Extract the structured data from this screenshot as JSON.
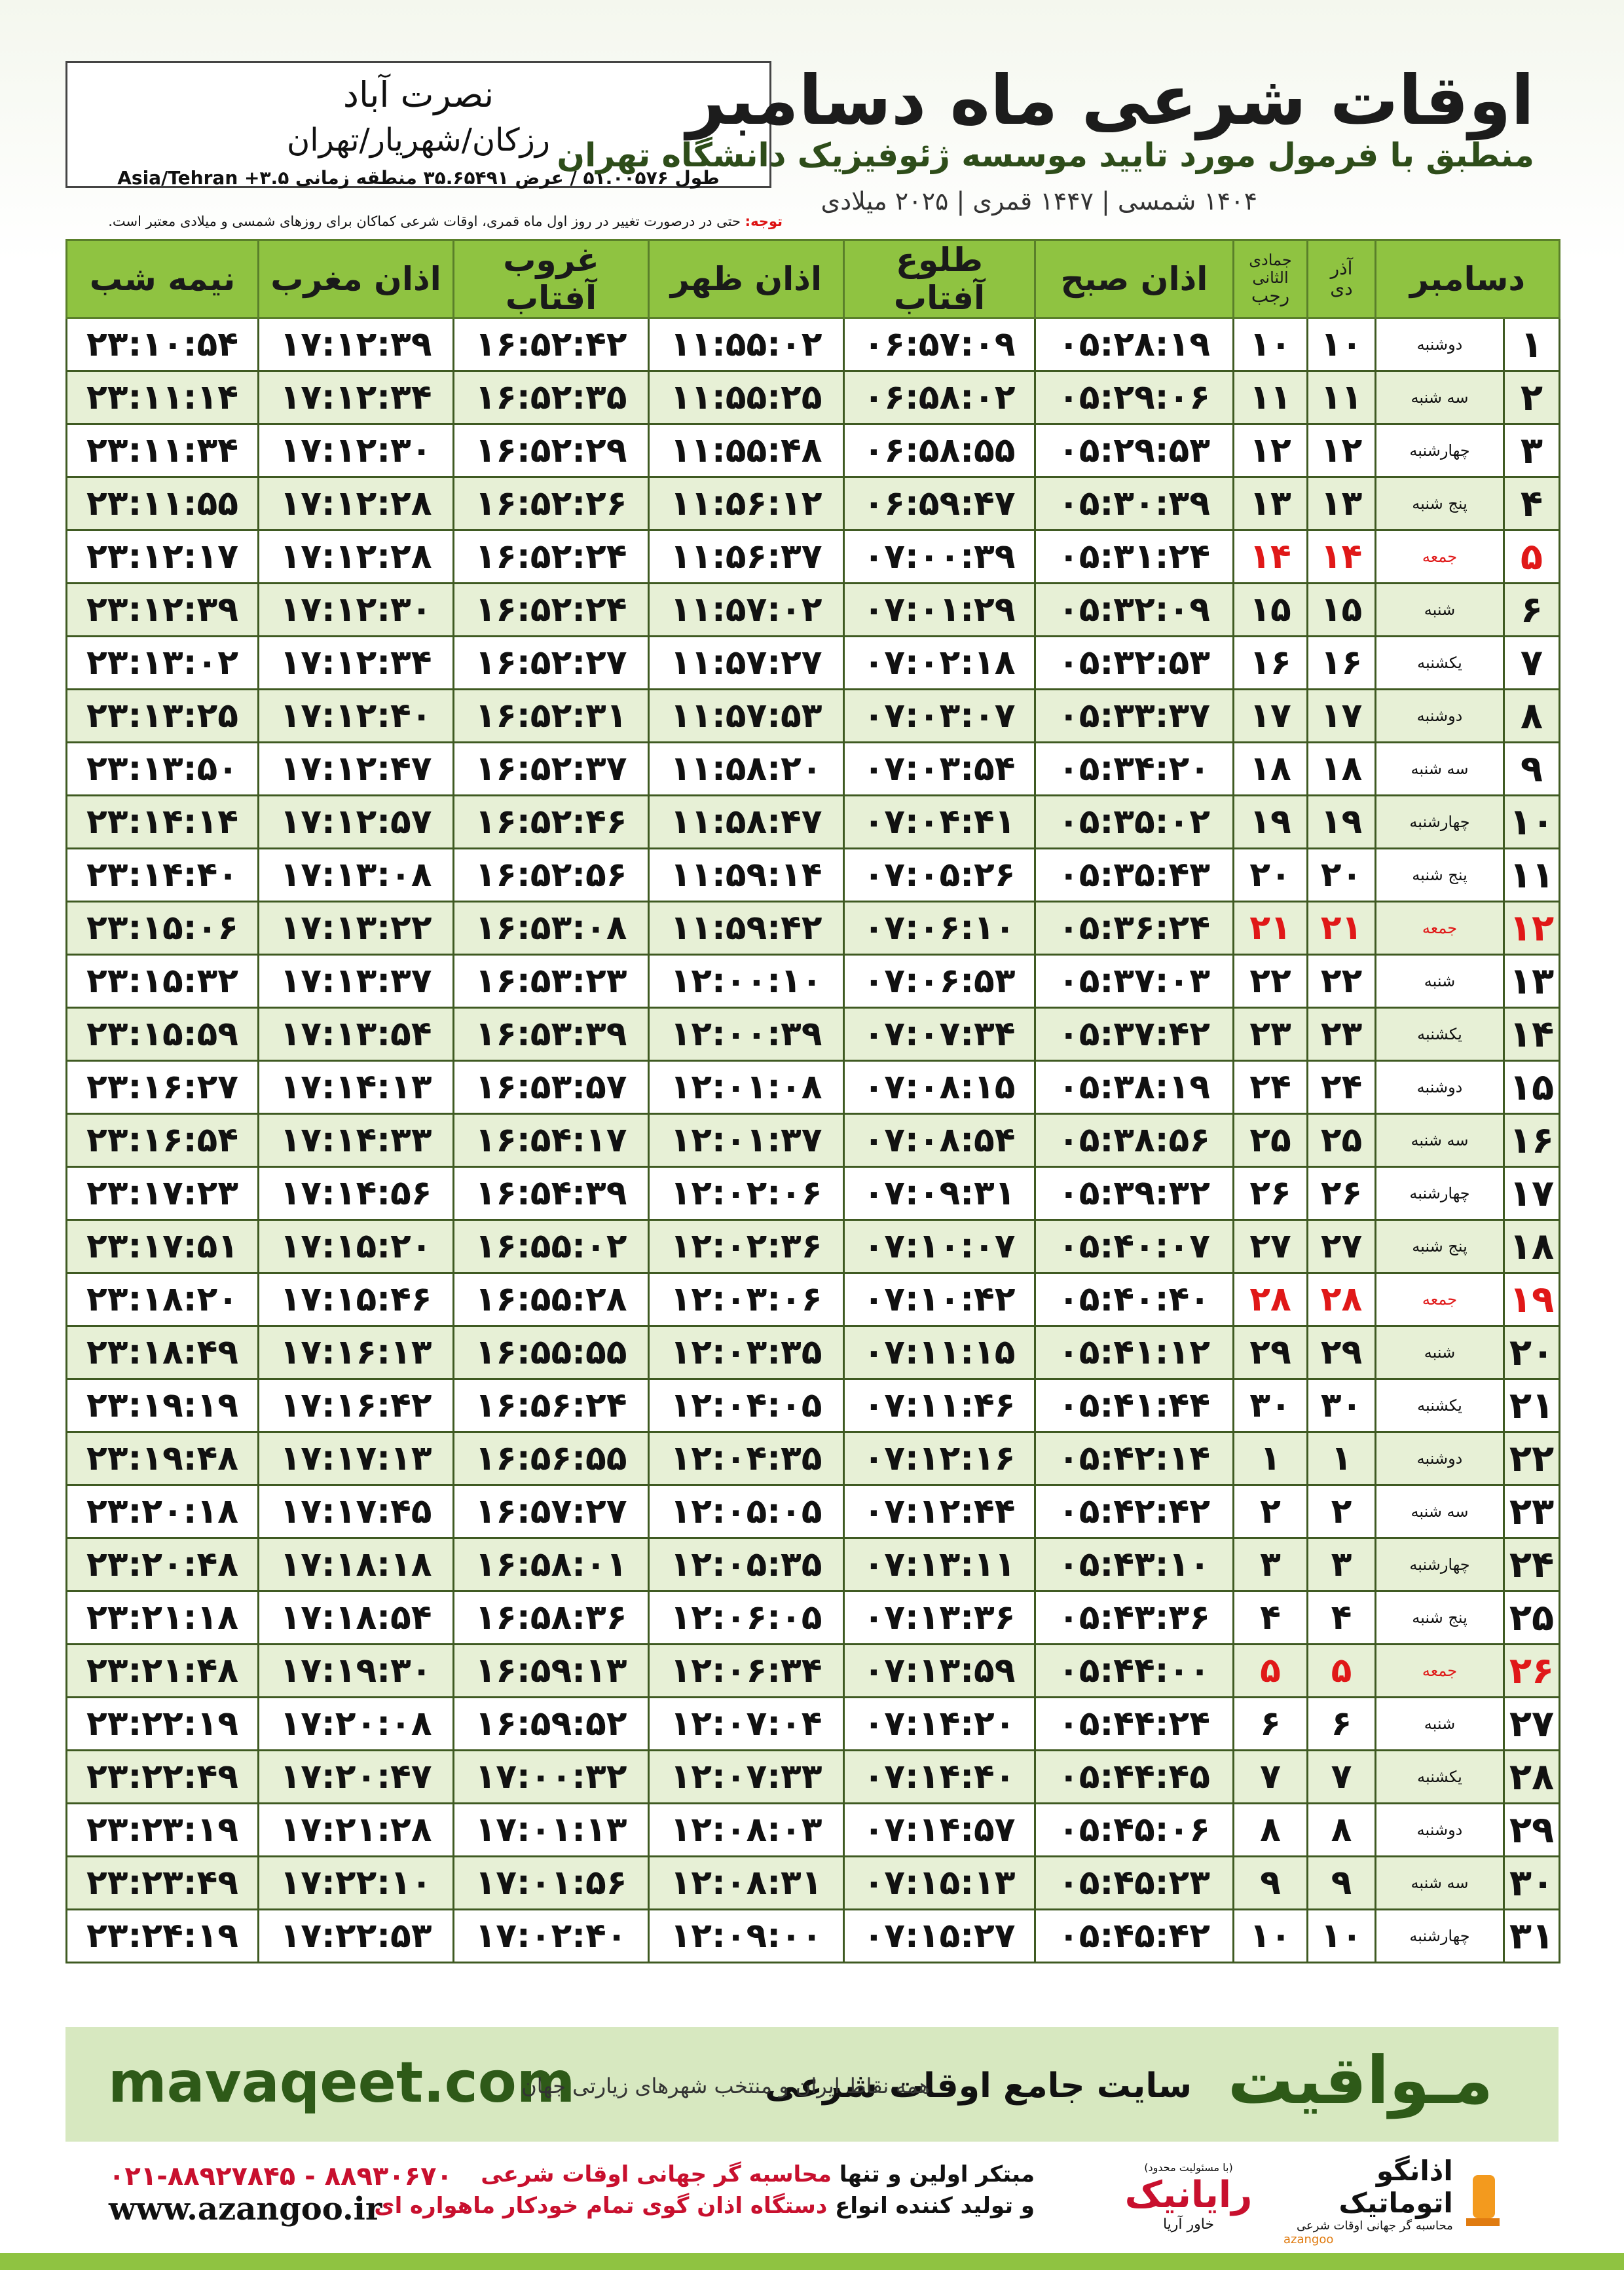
{
  "header": {
    "title": "اوقات شرعی ماه دسامبر",
    "subtitle": "منطبق با فرمول مورد تایید موسسه ژئوفیزیک دانشگاه تهران",
    "dates": "۱۴۰۴ شمسی | ۱۴۴۷ قمری | ۲۰۲۵ میلادی",
    "note_label": "توجه:",
    "note": "حتی در درصورت تغییر در روز اول ماه قمری، اوقات شرعی کماکان برای روزهای شمسی و میلادی معتبر است."
  },
  "location": {
    "name": "نصرت آباد",
    "region": "رزکان/شهریار/تهران",
    "coords": "طول ۵۱.۰۰۵۷۶ / عرض ۳۵.۶۵۴۹۱ منطقه زمانی ۳.۵+ Asia/Tehran"
  },
  "table": {
    "month": "دسامبر",
    "solar_months": [
      "آذر",
      "دی"
    ],
    "lunar_months": [
      "جمادی الثانی",
      "رجب"
    ],
    "columns": [
      "اذان صبح",
      "طلوع آفتاب",
      "اذان ظهر",
      "غروب آفتاب",
      "اذان مغرب",
      "نیمه شب"
    ],
    "rows": [
      [
        "۱",
        "دوشنبه",
        "۱۰",
        "۱۰",
        "۰۵:۲۸:۱۹",
        "۰۶:۵۷:۰۹",
        "۱۱:۵۵:۰۲",
        "۱۶:۵۲:۴۲",
        "۱۷:۱۲:۳۹",
        "۲۳:۱۰:۵۴"
      ],
      [
        "۲",
        "سه شنبه",
        "۱۱",
        "۱۱",
        "۰۵:۲۹:۰۶",
        "۰۶:۵۸:۰۲",
        "۱۱:۵۵:۲۵",
        "۱۶:۵۲:۳۵",
        "۱۷:۱۲:۳۴",
        "۲۳:۱۱:۱۴"
      ],
      [
        "۳",
        "چهارشنبه",
        "۱۲",
        "۱۲",
        "۰۵:۲۹:۵۳",
        "۰۶:۵۸:۵۵",
        "۱۱:۵۵:۴۸",
        "۱۶:۵۲:۲۹",
        "۱۷:۱۲:۳۰",
        "۲۳:۱۱:۳۴"
      ],
      [
        "۴",
        "پنج شنبه",
        "۱۳",
        "۱۳",
        "۰۵:۳۰:۳۹",
        "۰۶:۵۹:۴۷",
        "۱۱:۵۶:۱۲",
        "۱۶:۵۲:۲۶",
        "۱۷:۱۲:۲۸",
        "۲۳:۱۱:۵۵"
      ],
      [
        "۵",
        "جمعه",
        "۱۴",
        "۱۴",
        "۰۵:۳۱:۲۴",
        "۰۷:۰۰:۳۹",
        "۱۱:۵۶:۳۷",
        "۱۶:۵۲:۲۴",
        "۱۷:۱۲:۲۸",
        "۲۳:۱۲:۱۷"
      ],
      [
        "۶",
        "شنبه",
        "۱۵",
        "۱۵",
        "۰۵:۳۲:۰۹",
        "۰۷:۰۱:۲۹",
        "۱۱:۵۷:۰۲",
        "۱۶:۵۲:۲۴",
        "۱۷:۱۲:۳۰",
        "۲۳:۱۲:۳۹"
      ],
      [
        "۷",
        "یکشنبه",
        "۱۶",
        "۱۶",
        "۰۵:۳۲:۵۳",
        "۰۷:۰۲:۱۸",
        "۱۱:۵۷:۲۷",
        "۱۶:۵۲:۲۷",
        "۱۷:۱۲:۳۴",
        "۲۳:۱۳:۰۲"
      ],
      [
        "۸",
        "دوشنبه",
        "۱۷",
        "۱۷",
        "۰۵:۳۳:۳۷",
        "۰۷:۰۳:۰۷",
        "۱۱:۵۷:۵۳",
        "۱۶:۵۲:۳۱",
        "۱۷:۱۲:۴۰",
        "۲۳:۱۳:۲۵"
      ],
      [
        "۹",
        "سه شنبه",
        "۱۸",
        "۱۸",
        "۰۵:۳۴:۲۰",
        "۰۷:۰۳:۵۴",
        "۱۱:۵۸:۲۰",
        "۱۶:۵۲:۳۷",
        "۱۷:۱۲:۴۷",
        "۲۳:۱۳:۵۰"
      ],
      [
        "۱۰",
        "چهارشنبه",
        "۱۹",
        "۱۹",
        "۰۵:۳۵:۰۲",
        "۰۷:۰۴:۴۱",
        "۱۱:۵۸:۴۷",
        "۱۶:۵۲:۴۶",
        "۱۷:۱۲:۵۷",
        "۲۳:۱۴:۱۴"
      ],
      [
        "۱۱",
        "پنج شنبه",
        "۲۰",
        "۲۰",
        "۰۵:۳۵:۴۳",
        "۰۷:۰۵:۲۶",
        "۱۱:۵۹:۱۴",
        "۱۶:۵۲:۵۶",
        "۱۷:۱۳:۰۸",
        "۲۳:۱۴:۴۰"
      ],
      [
        "۱۲",
        "جمعه",
        "۲۱",
        "۲۱",
        "۰۵:۳۶:۲۴",
        "۰۷:۰۶:۱۰",
        "۱۱:۵۹:۴۲",
        "۱۶:۵۳:۰۸",
        "۱۷:۱۳:۲۲",
        "۲۳:۱۵:۰۶"
      ],
      [
        "۱۳",
        "شنبه",
        "۲۲",
        "۲۲",
        "۰۵:۳۷:۰۳",
        "۰۷:۰۶:۵۳",
        "۱۲:۰۰:۱۰",
        "۱۶:۵۳:۲۳",
        "۱۷:۱۳:۳۷",
        "۲۳:۱۵:۳۲"
      ],
      [
        "۱۴",
        "یکشنبه",
        "۲۳",
        "۲۳",
        "۰۵:۳۷:۴۲",
        "۰۷:۰۷:۳۴",
        "۱۲:۰۰:۳۹",
        "۱۶:۵۳:۳۹",
        "۱۷:۱۳:۵۴",
        "۲۳:۱۵:۵۹"
      ],
      [
        "۱۵",
        "دوشنبه",
        "۲۴",
        "۲۴",
        "۰۵:۳۸:۱۹",
        "۰۷:۰۸:۱۵",
        "۱۲:۰۱:۰۸",
        "۱۶:۵۳:۵۷",
        "۱۷:۱۴:۱۳",
        "۲۳:۱۶:۲۷"
      ],
      [
        "۱۶",
        "سه شنبه",
        "۲۵",
        "۲۵",
        "۰۵:۳۸:۵۶",
        "۰۷:۰۸:۵۴",
        "۱۲:۰۱:۳۷",
        "۱۶:۵۴:۱۷",
        "۱۷:۱۴:۳۳",
        "۲۳:۱۶:۵۴"
      ],
      [
        "۱۷",
        "چهارشنبه",
        "۲۶",
        "۲۶",
        "۰۵:۳۹:۳۲",
        "۰۷:۰۹:۳۱",
        "۱۲:۰۲:۰۶",
        "۱۶:۵۴:۳۹",
        "۱۷:۱۴:۵۶",
        "۲۳:۱۷:۲۳"
      ],
      [
        "۱۸",
        "پنج شنبه",
        "۲۷",
        "۲۷",
        "۰۵:۴۰:۰۷",
        "۰۷:۱۰:۰۷",
        "۱۲:۰۲:۳۶",
        "۱۶:۵۵:۰۲",
        "۱۷:۱۵:۲۰",
        "۲۳:۱۷:۵۱"
      ],
      [
        "۱۹",
        "جمعه",
        "۲۸",
        "۲۸",
        "۰۵:۴۰:۴۰",
        "۰۷:۱۰:۴۲",
        "۱۲:۰۳:۰۶",
        "۱۶:۵۵:۲۸",
        "۱۷:۱۵:۴۶",
        "۲۳:۱۸:۲۰"
      ],
      [
        "۲۰",
        "شنبه",
        "۲۹",
        "۲۹",
        "۰۵:۴۱:۱۲",
        "۰۷:۱۱:۱۵",
        "۱۲:۰۳:۳۵",
        "۱۶:۵۵:۵۵",
        "۱۷:۱۶:۱۳",
        "۲۳:۱۸:۴۹"
      ],
      [
        "۲۱",
        "یکشنبه",
        "۳۰",
        "۳۰",
        "۰۵:۴۱:۴۴",
        "۰۷:۱۱:۴۶",
        "۱۲:۰۴:۰۵",
        "۱۶:۵۶:۲۴",
        "۱۷:۱۶:۴۲",
        "۲۳:۱۹:۱۹"
      ],
      [
        "۲۲",
        "دوشنبه",
        "۱",
        "۱",
        "۰۵:۴۲:۱۴",
        "۰۷:۱۲:۱۶",
        "۱۲:۰۴:۳۵",
        "۱۶:۵۶:۵۵",
        "۱۷:۱۷:۱۳",
        "۲۳:۱۹:۴۸"
      ],
      [
        "۲۳",
        "سه شنبه",
        "۲",
        "۲",
        "۰۵:۴۲:۴۲",
        "۰۷:۱۲:۴۴",
        "۱۲:۰۵:۰۵",
        "۱۶:۵۷:۲۷",
        "۱۷:۱۷:۴۵",
        "۲۳:۲۰:۱۸"
      ],
      [
        "۲۴",
        "چهارشنبه",
        "۳",
        "۳",
        "۰۵:۴۳:۱۰",
        "۰۷:۱۳:۱۱",
        "۱۲:۰۵:۳۵",
        "۱۶:۵۸:۰۱",
        "۱۷:۱۸:۱۸",
        "۲۳:۲۰:۴۸"
      ],
      [
        "۲۵",
        "پنج شنبه",
        "۴",
        "۴",
        "۰۵:۴۳:۳۶",
        "۰۷:۱۳:۳۶",
        "۱۲:۰۶:۰۵",
        "۱۶:۵۸:۳۶",
        "۱۷:۱۸:۵۴",
        "۲۳:۲۱:۱۸"
      ],
      [
        "۲۶",
        "جمعه",
        "۵",
        "۵",
        "۰۵:۴۴:۰۰",
        "۰۷:۱۳:۵۹",
        "۱۲:۰۶:۳۴",
        "۱۶:۵۹:۱۳",
        "۱۷:۱۹:۳۰",
        "۲۳:۲۱:۴۸"
      ],
      [
        "۲۷",
        "شنبه",
        "۶",
        "۶",
        "۰۵:۴۴:۲۴",
        "۰۷:۱۴:۲۰",
        "۱۲:۰۷:۰۴",
        "۱۶:۵۹:۵۲",
        "۱۷:۲۰:۰۸",
        "۲۳:۲۲:۱۹"
      ],
      [
        "۲۸",
        "یکشنبه",
        "۷",
        "۷",
        "۰۵:۴۴:۴۵",
        "۰۷:۱۴:۴۰",
        "۱۲:۰۷:۳۳",
        "۱۷:۰۰:۳۲",
        "۱۷:۲۰:۴۷",
        "۲۳:۲۲:۴۹"
      ],
      [
        "۲۹",
        "دوشنبه",
        "۸",
        "۸",
        "۰۵:۴۵:۰۶",
        "۰۷:۱۴:۵۷",
        "۱۲:۰۸:۰۳",
        "۱۷:۰۱:۱۳",
        "۱۷:۲۱:۲۸",
        "۲۳:۲۳:۱۹"
      ],
      [
        "۳۰",
        "سه شنبه",
        "۹",
        "۹",
        "۰۵:۴۵:۲۳",
        "۰۷:۱۵:۱۳",
        "۱۲:۰۸:۳۱",
        "۱۷:۰۱:۵۶",
        "۱۷:۲۲:۱۰",
        "۲۳:۲۳:۴۹"
      ],
      [
        "۳۱",
        "چهارشنبه",
        "۱۰",
        "۱۰",
        "۰۵:۴۵:۴۲",
        "۰۷:۱۵:۲۷",
        "۱۲:۰۹:۰۰",
        "۱۷:۰۲:۴۰",
        "۱۷:۲۲:۵۳",
        "۲۳:۲۴:۱۹"
      ]
    ]
  },
  "footer": {
    "brand": "مـواقیت",
    "tagline": "سایت جامع اوقات شرعی",
    "coverage": "همه نقاط ایران و منتخب شهرهای زیارتی جهان",
    "site": "mavaqeet.com",
    "line1_a": "مبتکر اولین و تنها",
    "line1_b": "محاسبه گر جهانی اوقات شرعی",
    "line2_a": "و تولید کننده انواع",
    "line2_b": "دستگاه اذان گوی تمام خودکار ماهواره ای",
    "phone": "۰۲۱-۸۸۹۲۷۸۴۵ - ۸۸۹۳۰۶۷۰",
    "url": "www.azangoo.ir",
    "logo1": "رایانیک",
    "logo1_sub": "خاور آریا",
    "logo1_note": "(با مسئولیت محدود)",
    "logo2": "اذانگو اتوماتیک",
    "logo2_sub": "محاسبه گر جهانی اوقات شرعی",
    "logo2_latin": "azangoo"
  }
}
